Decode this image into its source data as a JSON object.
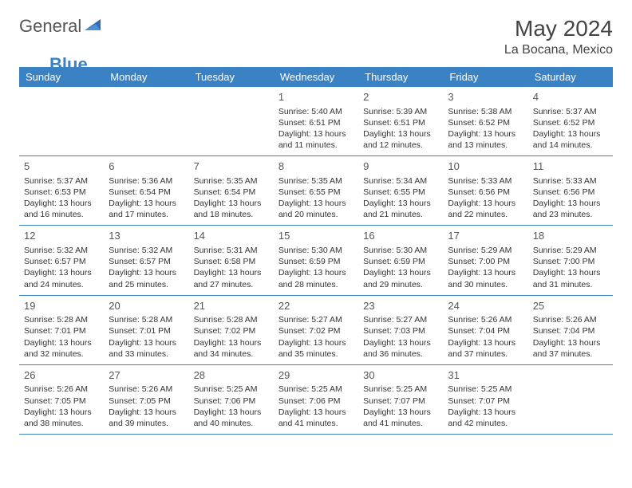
{
  "brand": {
    "part1": "General",
    "part2": "Blue"
  },
  "title": "May 2024",
  "location": "La Bocana, Mexico",
  "columns": [
    "Sunday",
    "Monday",
    "Tuesday",
    "Wednesday",
    "Thursday",
    "Friday",
    "Saturday"
  ],
  "colors": {
    "header_bg": "#3b82c4",
    "header_text": "#ffffff",
    "border": "#3b82c4"
  },
  "weeks": [
    [
      null,
      null,
      null,
      {
        "day": "1",
        "sunrise": "5:40 AM",
        "sunset": "6:51 PM",
        "daylight": "13 hours and 11 minutes."
      },
      {
        "day": "2",
        "sunrise": "5:39 AM",
        "sunset": "6:51 PM",
        "daylight": "13 hours and 12 minutes."
      },
      {
        "day": "3",
        "sunrise": "5:38 AM",
        "sunset": "6:52 PM",
        "daylight": "13 hours and 13 minutes."
      },
      {
        "day": "4",
        "sunrise": "5:37 AM",
        "sunset": "6:52 PM",
        "daylight": "13 hours and 14 minutes."
      }
    ],
    [
      {
        "day": "5",
        "sunrise": "5:37 AM",
        "sunset": "6:53 PM",
        "daylight": "13 hours and 16 minutes."
      },
      {
        "day": "6",
        "sunrise": "5:36 AM",
        "sunset": "6:54 PM",
        "daylight": "13 hours and 17 minutes."
      },
      {
        "day": "7",
        "sunrise": "5:35 AM",
        "sunset": "6:54 PM",
        "daylight": "13 hours and 18 minutes."
      },
      {
        "day": "8",
        "sunrise": "5:35 AM",
        "sunset": "6:55 PM",
        "daylight": "13 hours and 20 minutes."
      },
      {
        "day": "9",
        "sunrise": "5:34 AM",
        "sunset": "6:55 PM",
        "daylight": "13 hours and 21 minutes."
      },
      {
        "day": "10",
        "sunrise": "5:33 AM",
        "sunset": "6:56 PM",
        "daylight": "13 hours and 22 minutes."
      },
      {
        "day": "11",
        "sunrise": "5:33 AM",
        "sunset": "6:56 PM",
        "daylight": "13 hours and 23 minutes."
      }
    ],
    [
      {
        "day": "12",
        "sunrise": "5:32 AM",
        "sunset": "6:57 PM",
        "daylight": "13 hours and 24 minutes."
      },
      {
        "day": "13",
        "sunrise": "5:32 AM",
        "sunset": "6:57 PM",
        "daylight": "13 hours and 25 minutes."
      },
      {
        "day": "14",
        "sunrise": "5:31 AM",
        "sunset": "6:58 PM",
        "daylight": "13 hours and 27 minutes."
      },
      {
        "day": "15",
        "sunrise": "5:30 AM",
        "sunset": "6:59 PM",
        "daylight": "13 hours and 28 minutes."
      },
      {
        "day": "16",
        "sunrise": "5:30 AM",
        "sunset": "6:59 PM",
        "daylight": "13 hours and 29 minutes."
      },
      {
        "day": "17",
        "sunrise": "5:29 AM",
        "sunset": "7:00 PM",
        "daylight": "13 hours and 30 minutes."
      },
      {
        "day": "18",
        "sunrise": "5:29 AM",
        "sunset": "7:00 PM",
        "daylight": "13 hours and 31 minutes."
      }
    ],
    [
      {
        "day": "19",
        "sunrise": "5:28 AM",
        "sunset": "7:01 PM",
        "daylight": "13 hours and 32 minutes."
      },
      {
        "day": "20",
        "sunrise": "5:28 AM",
        "sunset": "7:01 PM",
        "daylight": "13 hours and 33 minutes."
      },
      {
        "day": "21",
        "sunrise": "5:28 AM",
        "sunset": "7:02 PM",
        "daylight": "13 hours and 34 minutes."
      },
      {
        "day": "22",
        "sunrise": "5:27 AM",
        "sunset": "7:02 PM",
        "daylight": "13 hours and 35 minutes."
      },
      {
        "day": "23",
        "sunrise": "5:27 AM",
        "sunset": "7:03 PM",
        "daylight": "13 hours and 36 minutes."
      },
      {
        "day": "24",
        "sunrise": "5:26 AM",
        "sunset": "7:04 PM",
        "daylight": "13 hours and 37 minutes."
      },
      {
        "day": "25",
        "sunrise": "5:26 AM",
        "sunset": "7:04 PM",
        "daylight": "13 hours and 37 minutes."
      }
    ],
    [
      {
        "day": "26",
        "sunrise": "5:26 AM",
        "sunset": "7:05 PM",
        "daylight": "13 hours and 38 minutes."
      },
      {
        "day": "27",
        "sunrise": "5:26 AM",
        "sunset": "7:05 PM",
        "daylight": "13 hours and 39 minutes."
      },
      {
        "day": "28",
        "sunrise": "5:25 AM",
        "sunset": "7:06 PM",
        "daylight": "13 hours and 40 minutes."
      },
      {
        "day": "29",
        "sunrise": "5:25 AM",
        "sunset": "7:06 PM",
        "daylight": "13 hours and 41 minutes."
      },
      {
        "day": "30",
        "sunrise": "5:25 AM",
        "sunset": "7:07 PM",
        "daylight": "13 hours and 41 minutes."
      },
      {
        "day": "31",
        "sunrise": "5:25 AM",
        "sunset": "7:07 PM",
        "daylight": "13 hours and 42 minutes."
      },
      null
    ]
  ],
  "labels": {
    "sunrise": "Sunrise: ",
    "sunset": "Sunset: ",
    "daylight": "Daylight: "
  }
}
